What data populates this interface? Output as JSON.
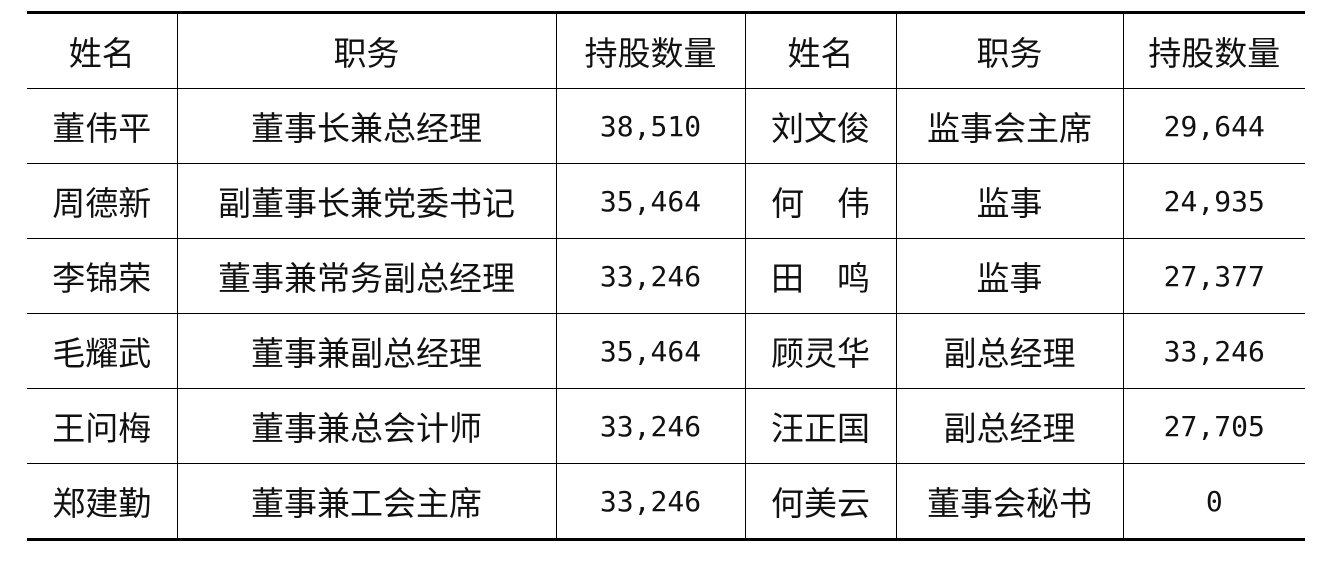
{
  "headers": [
    "姓名",
    "职务",
    "持股数量",
    "姓名",
    "职务",
    "持股数量"
  ],
  "rows": [
    [
      "董伟平",
      "董事长兼总经理",
      "38,510",
      "刘文俊",
      "监事会主席",
      "29,644"
    ],
    [
      "周德新",
      "副董事长兼党委书记",
      "35,464",
      "何　伟",
      "监事",
      "24,935"
    ],
    [
      "李锦荣",
      "董事兼常务副总经理",
      "33,246",
      "田　鸣",
      "监事",
      "27,377"
    ],
    [
      "毛耀武",
      "董事兼副总经理",
      "35,464",
      "顾灵华",
      "副总经理",
      "33,246"
    ],
    [
      "王问梅",
      "董事兼总会计师",
      "33,246",
      "汪正国",
      "副总经理",
      "27,705"
    ],
    [
      "郑建勤",
      "董事兼工会主席",
      "33,246",
      "何美云",
      "董事会秘书",
      "0"
    ]
  ]
}
